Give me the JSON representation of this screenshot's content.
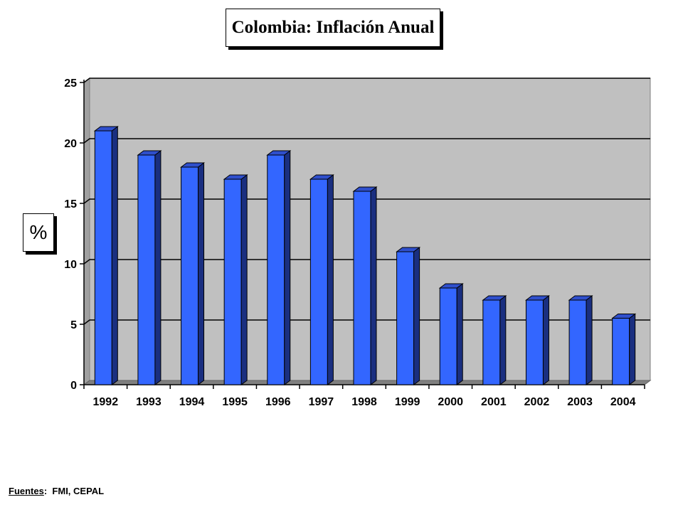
{
  "title": "Colombia: Inflación Anual",
  "y_axis_label": "%",
  "source": {
    "label": "Fuentes",
    "separator": ":",
    "text": "FMI, CEPAL"
  },
  "colors": {
    "bar_front": "#3366ff",
    "bar_side": "#1a2f80",
    "bar_top": "#2f4fcc",
    "plot_back": "#c0c0c0",
    "plot_floor": "#808080",
    "gridline": "#000000"
  },
  "chart_data": {
    "type": "bar",
    "title": "Colombia: Inflación Anual",
    "xlabel": "",
    "ylabel": "%",
    "categories": [
      "1992",
      "1993",
      "1994",
      "1995",
      "1996",
      "1997",
      "1998",
      "1999",
      "2000",
      "2001",
      "2002",
      "2003",
      "2004"
    ],
    "values": [
      21,
      19,
      18,
      17,
      19,
      17,
      16,
      11,
      8,
      7,
      7,
      7,
      5.5
    ],
    "ylim": [
      0,
      25
    ],
    "yticks": [
      0,
      5,
      10,
      15,
      20,
      25
    ],
    "grid": true,
    "legend": "none",
    "style": "3d"
  }
}
